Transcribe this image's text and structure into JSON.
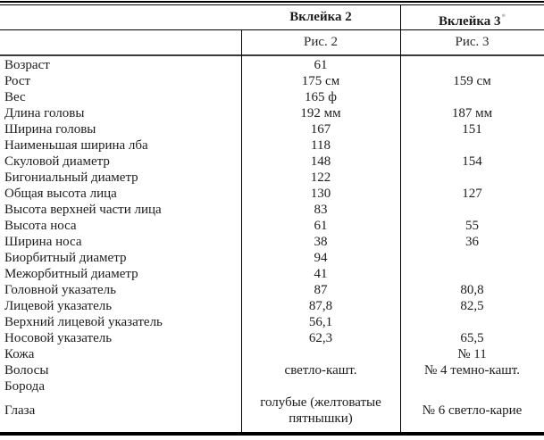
{
  "header": {
    "col2": "Вклейка 2",
    "col3": "Вклейка 3",
    "footnote_marker": "*",
    "sub2": "Рис. 2",
    "sub3": "Рис. 3"
  },
  "rows": [
    {
      "label": "Возраст",
      "v2": "61",
      "v3": ""
    },
    {
      "label": "Рост",
      "v2": "175 см",
      "v3": "159 см"
    },
    {
      "label": "Вес",
      "v2": "165 ф",
      "v3": ""
    },
    {
      "label": "Длина головы",
      "v2": "192 мм",
      "v3": "187 мм"
    },
    {
      "label": "Ширина головы",
      "v2": "167",
      "v3": "151"
    },
    {
      "label": "Наименьшая ширина лба",
      "v2": "118",
      "v3": ""
    },
    {
      "label": "Скуловой диаметр",
      "v2": "148",
      "v3": "154"
    },
    {
      "label": "Бигониальный диаметр",
      "v2": "122",
      "v3": ""
    },
    {
      "label": "Общая высота лица",
      "v2": "130",
      "v3": "127"
    },
    {
      "label": "Высота верхней части лица",
      "v2": "83",
      "v3": ""
    },
    {
      "label": "Высота носа",
      "v2": "61",
      "v3": "55"
    },
    {
      "label": "Ширина носа",
      "v2": "38",
      "v3": "36"
    },
    {
      "label": "Биорбитный диаметр",
      "v2": "94",
      "v3": ""
    },
    {
      "label": "Межорбитный диаметр",
      "v2": "41",
      "v3": ""
    },
    {
      "label": "Головной указатель",
      "v2": "87",
      "v3": "80,8"
    },
    {
      "label": "Лицевой указатель",
      "v2": "87,8",
      "v3": "82,5"
    },
    {
      "label": "Верхний лицевой указатель",
      "v2": "56,1",
      "v3": ""
    },
    {
      "label": "Носовой указатель",
      "v2": "62,3",
      "v3": "65,5"
    },
    {
      "label": "Кожа",
      "v2": "",
      "v3": "№ 11"
    },
    {
      "label": "Волосы",
      "v2": "светло-кашт.",
      "v3": "№ 4 темно-кашт."
    },
    {
      "label": "Борода",
      "v2": "",
      "v3": ""
    },
    {
      "label": "Глаза",
      "v2": "голубые (желтоватые пятнышки)",
      "v3": "№ 6 светло-карие"
    }
  ],
  "colors": {
    "text": "#1c1c1c",
    "rule": "#000000",
    "background": "#ffffff"
  }
}
